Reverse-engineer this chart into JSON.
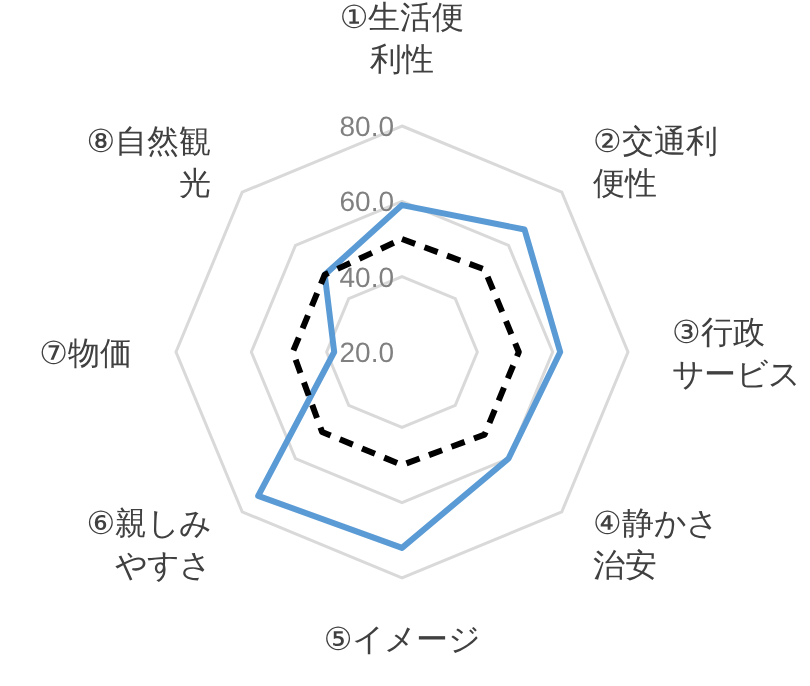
{
  "chart_data": {
    "type": "radar",
    "categories": [
      "①生活便利性",
      "②交通利便性",
      "③行政サービス",
      "④静かさ治安",
      "⑤イメージ",
      "⑥親しみやすさ",
      "⑦物価",
      "⑧自然観光"
    ],
    "ylim": [
      20,
      80
    ],
    "yticks": [
      {
        "value": 20,
        "label": "20.0"
      },
      {
        "value": 40,
        "label": "40.0"
      },
      {
        "value": 60,
        "label": "60.0"
      },
      {
        "value": 80,
        "label": "80.0"
      }
    ],
    "series": [
      {
        "color": "#5b9bd5",
        "line_style": "solid",
        "values": [
          59,
          66,
          62,
          60,
          72,
          74,
          38,
          49
        ]
      },
      {
        "color": "#000000",
        "line_style": "dashed",
        "values": [
          50,
          51,
          51,
          51,
          50,
          50,
          49,
          49
        ]
      }
    ],
    "grid": true
  }
}
